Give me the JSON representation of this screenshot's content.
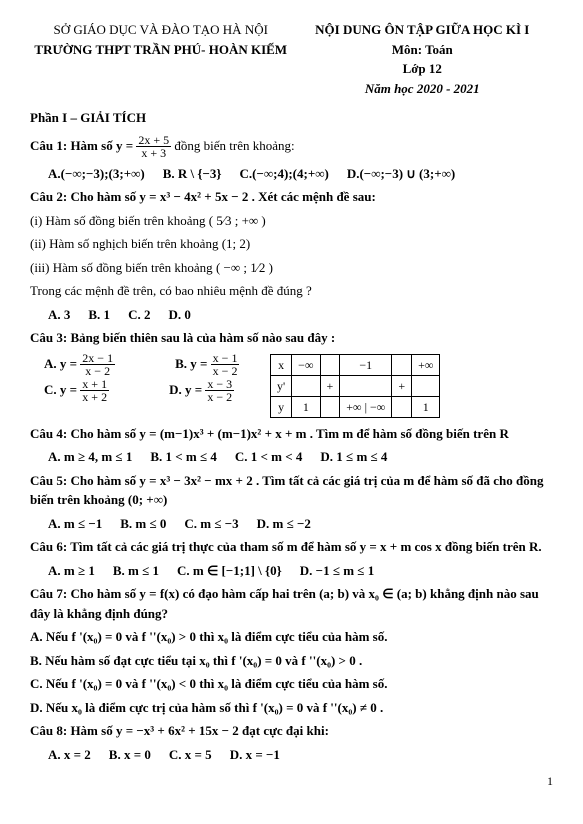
{
  "header": {
    "left1": "SỞ GIÁO DỤC VÀ ĐÀO TẠO HÀ NỘI",
    "left2": "TRƯỜNG THPT TRẦN PHÚ- HOÀN KIẾM",
    "right1": "NỘI DUNG ÔN TẬP GIỮA HỌC KÌ I",
    "right2": "Môn: Toán",
    "right3": "Lớp 12",
    "right4": "Năm học 2020 - 2021"
  },
  "section1": "Phần I – GIẢI TÍCH",
  "q1": {
    "stem_pre": "Câu 1: Hàm số  y =",
    "frac_num": "2x + 5",
    "frac_den": "x + 3",
    "stem_post": " đồng biến trên khoảng:",
    "A": "A.(−∞;−3);(3;+∞)",
    "B": "B. R \\ {−3}",
    "C": "C.(−∞;4);(4;+∞)",
    "D": "D.(−∞;−3) ∪ (3;+∞)"
  },
  "q2": {
    "stem": "Câu 2: Cho hàm số  y = x³ − 4x² + 5x − 2 . Xét các mệnh đề sau:",
    "i_pre": "(i) Hàm số đồng biến trên khoảng ",
    "i_int": "( 5⁄3 ; +∞ )",
    "ii": "(ii)  Hàm số nghịch biến trên khoảng (1; 2)",
    "iii_pre": "(iii) Hàm số đồng biến trên khoảng ",
    "iii_int": "( −∞ ; 1⁄2 )",
    "ask": "Trong các mệnh đề trên, có bao nhiêu mệnh đề đúng ?",
    "A": "A. 3",
    "B": "B. 1",
    "C": "C. 2",
    "D": "D. 0"
  },
  "q3": {
    "stem": "Câu 3: Bảng biến thiên sau là của hàm số nào sau đây :",
    "A_pre": "A. y =",
    "A_num": "2x − 1",
    "A_den": "x − 2",
    "B_pre": "B. y =",
    "B_num": "x − 1",
    "B_den": "x − 2",
    "C_pre": "C. y =",
    "C_num": "x + 1",
    "C_den": "x + 2",
    "D_pre": "D. y =",
    "D_num": "x − 3",
    "D_den": "x − 2",
    "tbl": {
      "r1": [
        "x",
        "−∞",
        "",
        "−1",
        "",
        "+∞"
      ],
      "r2": [
        "y'",
        "",
        "+",
        "",
        "+",
        ""
      ],
      "r3": [
        "y",
        "1",
        "",
        "+∞ | −∞",
        "",
        "1"
      ]
    }
  },
  "q4": {
    "stem": "Câu 4: Cho hàm số  y = (m−1)x³ + (m−1)x² + x + m . Tìm m để hàm số đồng biến trên R",
    "A": "A. m ≥ 4, m ≤ 1",
    "B": "B. 1 < m ≤ 4",
    "C": "C. 1 < m < 4",
    "D": "D. 1 ≤ m ≤ 4"
  },
  "q5": {
    "stem": "Câu 5: Cho hàm số  y = x³ − 3x² − mx + 2 . Tìm tất cả các giá trị của m để hàm số đã cho đồng biến trên khoảng (0; +∞)",
    "A": "A. m ≤ −1",
    "B": "B. m ≤ 0",
    "C": "C. m ≤ −3",
    "D": "D. m ≤ −2"
  },
  "q6": {
    "stem": "Câu 6: Tìm tất cả các giá trị thực của tham số m để hàm số  y = x + m cos x  đồng biến trên R.",
    "A": "A. m ≥ 1",
    "B": "B. m ≤ 1",
    "C": "C. m ∈ [−1;1] \\ {0}",
    "D": "D. −1 ≤ m ≤ 1"
  },
  "q7": {
    "stem": "Câu 7: Cho hàm số  y = f(x)  có đạo hàm cấp hai trên (a; b) và x₀ ∈ (a; b) khẳng định nào sau đây là khẳng định đúng?",
    "A": "A. Nếu f '(x₀) = 0 và f ''(x₀) > 0 thì x₀ là điểm cực tiểu của hàm số.",
    "B": "B. Nếu hàm số đạt cực tiểu tại x₀ thì f '(x₀) = 0 và f ''(x₀) > 0 .",
    "C": "C. Nếu f '(x₀) = 0 và f ''(x₀) < 0 thì x₀ là điểm cực tiểu của hàm số.",
    "D": "D. Nếu x₀ là điểm cực trị của hàm số thì f '(x₀) = 0  và  f ''(x₀) ≠ 0 ."
  },
  "q8": {
    "stem": "Câu 8: Hàm số  y = −x³ + 6x² + 15x − 2  đạt cực đại khi:",
    "A": "A. x = 2",
    "B": "B. x = 0",
    "C": "C. x = 5",
    "D": "D. x = −1"
  },
  "pagenum": "1"
}
